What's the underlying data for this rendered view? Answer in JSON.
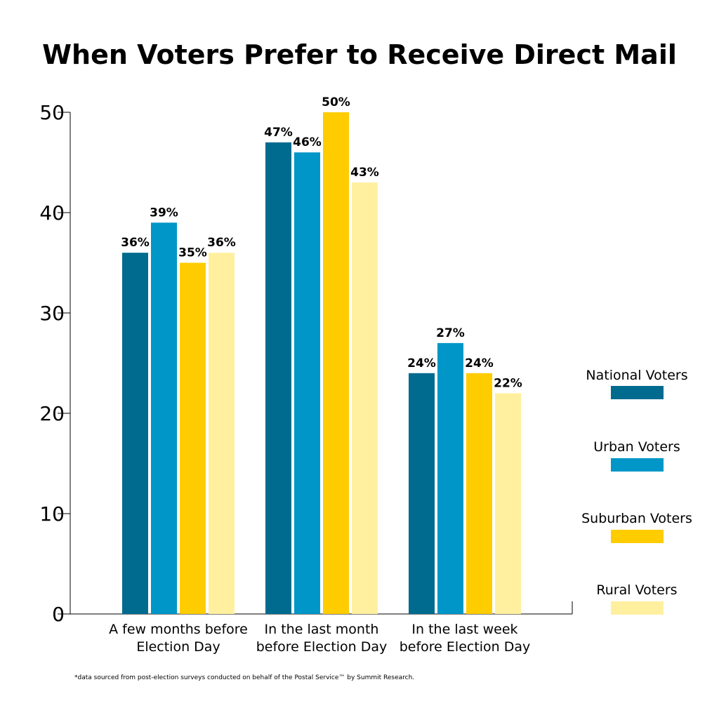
{
  "chart_data": {
    "type": "bar",
    "title": "When Voters Prefer to Receive Direct Mail",
    "categories": [
      [
        "A few months before",
        "Election Day"
      ],
      [
        "In the last month",
        "before Election Day"
      ],
      [
        "In the last week",
        "before Election Day"
      ]
    ],
    "series": [
      {
        "name": "National Voters",
        "color": "#006b8f",
        "values": [
          36,
          47,
          24
        ],
        "labels": [
          "36%",
          "47%",
          "24%"
        ]
      },
      {
        "name": "Urban Voters",
        "color": "#0096c8",
        "values": [
          39,
          46,
          27
        ],
        "labels": [
          "39%",
          "46%",
          "27%"
        ]
      },
      {
        "name": "Suburban Voters",
        "color": "#ffcc00",
        "values": [
          35,
          50,
          24
        ],
        "labels": [
          "35%",
          "50%",
          "24%"
        ]
      },
      {
        "name": "Rural Voters",
        "color": "#fff0a0",
        "values": [
          36,
          43,
          22
        ],
        "labels": [
          "36%",
          "43%",
          "22%"
        ]
      }
    ],
    "ylim": [
      0,
      50
    ],
    "yticks": [
      0,
      10,
      20,
      30,
      40,
      50
    ],
    "xlabel": "",
    "ylabel": "",
    "grid": false,
    "legend_position": "right"
  },
  "footnote": "*data sourced from post-election surveys conducted on behalf of the Postal Service™ by Summit Research."
}
